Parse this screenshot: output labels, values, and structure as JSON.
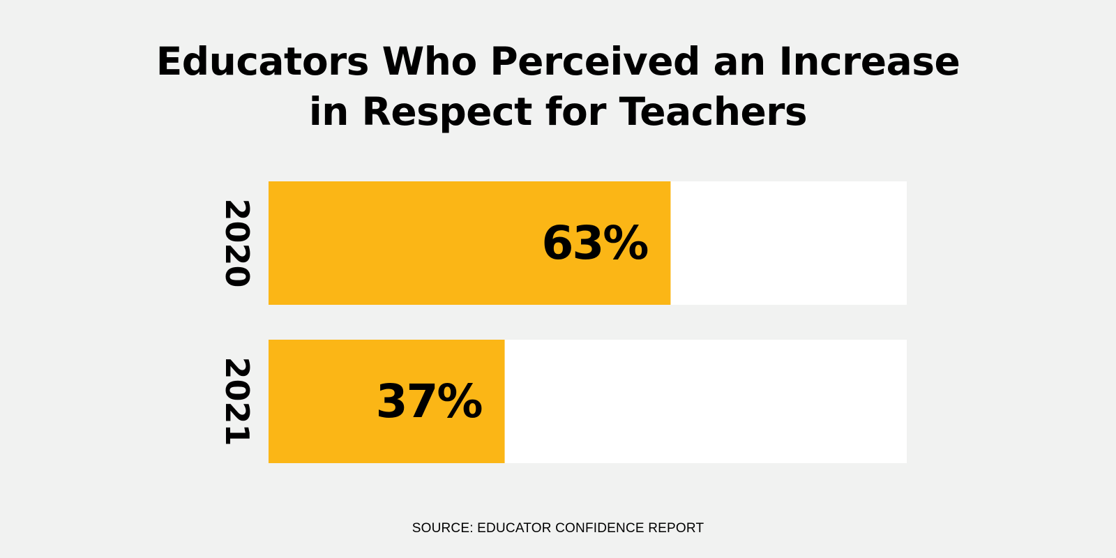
{
  "title_lines": [
    "Educators Who Perceived an Increase",
    "in Respect for Teachers"
  ],
  "source": "SOURCE: EDUCATOR CONFIDENCE REPORT",
  "colors": {
    "bar": "#fbb616",
    "track": "#ffffff",
    "background": "#f1f2f1",
    "text": "#000000"
  },
  "chart_data": {
    "type": "bar",
    "orientation": "horizontal",
    "categories": [
      "2020",
      "2021"
    ],
    "values": [
      63,
      37
    ],
    "data_labels": [
      "63%",
      "37%"
    ],
    "xlim": [
      0,
      100
    ],
    "grid": false,
    "legend": "none"
  }
}
